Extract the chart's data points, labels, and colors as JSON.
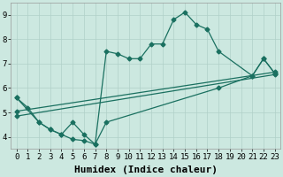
{
  "xlabel": "Humidex (Indice chaleur)",
  "xlim": [
    -0.5,
    23.5
  ],
  "ylim": [
    3.5,
    9.5
  ],
  "xticks": [
    0,
    1,
    2,
    3,
    4,
    5,
    6,
    7,
    8,
    9,
    10,
    11,
    12,
    13,
    14,
    15,
    16,
    17,
    18,
    19,
    20,
    21,
    22,
    23
  ],
  "yticks": [
    4,
    5,
    6,
    7,
    8,
    9
  ],
  "bg_color": "#cce8e0",
  "grid_color": "#b0d0c8",
  "line_color": "#1a7060",
  "curve1_x": [
    0,
    1,
    2,
    3,
    4,
    5,
    6,
    7,
    8,
    9,
    10,
    11,
    12,
    13,
    14,
    15,
    16,
    17,
    18,
    21,
    22,
    23
  ],
  "curve1_y": [
    5.6,
    5.2,
    4.6,
    4.3,
    4.1,
    3.9,
    3.85,
    3.7,
    7.5,
    7.4,
    7.2,
    7.2,
    7.8,
    7.8,
    8.8,
    9.1,
    8.6,
    8.4,
    7.5,
    6.5,
    7.2,
    6.6
  ],
  "curve2_x": [
    0,
    2,
    3,
    4,
    5,
    6,
    7,
    8,
    18,
    21,
    22,
    23
  ],
  "curve2_y": [
    5.6,
    4.6,
    4.3,
    4.1,
    4.6,
    4.1,
    3.7,
    4.6,
    6.0,
    6.5,
    7.2,
    6.6
  ],
  "trend1_x": [
    0,
    23
  ],
  "trend1_y": [
    4.85,
    6.55
  ],
  "trend2_x": [
    0,
    23
  ],
  "trend2_y": [
    5.05,
    6.65
  ],
  "marker": "D",
  "markersize": 2.5,
  "linewidth": 0.9,
  "xlabel_fontsize": 8,
  "tick_fontsize": 6.5,
  "font_family": "monospace"
}
